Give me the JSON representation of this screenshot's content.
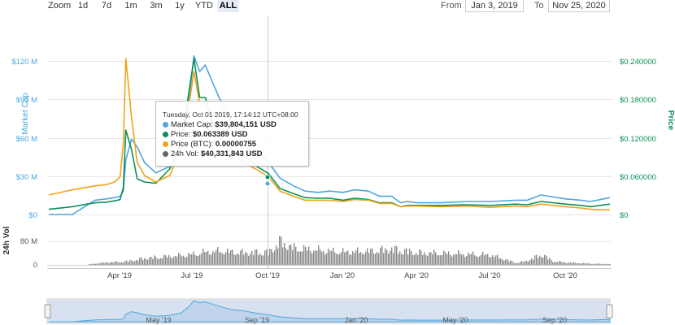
{
  "toolbar": {
    "zoom_label": "Zoom",
    "zoom_buttons": [
      "1d",
      "7d",
      "1m",
      "3m",
      "1y",
      "YTD",
      "ALL"
    ],
    "active_zoom": "ALL",
    "from_label": "From",
    "from_value": "Jan 3, 2019",
    "to_label": "To",
    "to_value": "Nov 25, 2020"
  },
  "tooltip": {
    "title": "Tuesday, Oct 01 2019, 17:14:12 UTC+08:00",
    "rows": [
      {
        "label": "Market Cap:",
        "value": "$39,804,151 USD",
        "color": "#4ea6dc"
      },
      {
        "label": "Price:",
        "value": "$0.063389 USD",
        "color": "#0c8f56"
      },
      {
        "label": "Price (BTC):",
        "value": "0.00000755",
        "color": "#f0a31a"
      },
      {
        "label": "24h Vol:",
        "value": "$40,331,843 USD",
        "color": "#666666"
      }
    ]
  },
  "chart_data": {
    "type": "line",
    "xlabel": "",
    "x_tick_labels": [
      "Apr '19",
      "Jul '19",
      "Oct '19",
      "Jan '20",
      "Apr '20",
      "Jul '20",
      "Oct '20"
    ],
    "left_axis": {
      "label": "Market Cap",
      "ticks": [
        "$0",
        "$30 M",
        "$60 M",
        "$90 M",
        "$120 M"
      ],
      "range": [
        0,
        140
      ]
    },
    "right_axis": {
      "label": "Price",
      "ticks": [
        "$0",
        "$0.060000",
        "$0.120000",
        "$0.180000",
        "$0.240000"
      ],
      "range": [
        0,
        0.28
      ]
    },
    "volume_axis": {
      "label": "24h Vol",
      "ticks": [
        "0",
        "80 M"
      ]
    },
    "navigator_labels": [
      "May '19",
      "Sep '19",
      "Jan '20",
      "May '20",
      "Sep '20"
    ],
    "x": [
      "2019-01-03",
      "2019-02-01",
      "2019-03-01",
      "2019-03-15",
      "2019-03-25",
      "2019-04-01",
      "2019-04-05",
      "2019-04-08",
      "2019-04-15",
      "2019-04-22",
      "2019-05-01",
      "2019-05-15",
      "2019-06-01",
      "2019-06-15",
      "2019-06-25",
      "2019-07-01",
      "2019-07-08",
      "2019-07-15",
      "2019-07-25",
      "2019-08-01",
      "2019-08-15",
      "2019-09-01",
      "2019-09-15",
      "2019-10-01",
      "2019-10-15",
      "2019-11-01",
      "2019-11-15",
      "2019-12-01",
      "2019-12-15",
      "2020-01-01",
      "2020-01-15",
      "2020-02-01",
      "2020-02-15",
      "2020-03-01",
      "2020-03-12",
      "2020-03-20",
      "2020-04-01",
      "2020-05-01",
      "2020-06-01",
      "2020-07-01",
      "2020-08-01",
      "2020-08-15",
      "2020-09-01",
      "2020-10-01",
      "2020-10-20",
      "2020-11-01",
      "2020-11-25"
    ],
    "series": [
      {
        "name": "Market Cap",
        "axis": "left",
        "color": "#4ea6dc",
        "values": [
          0,
          0,
          11,
          12,
          13,
          14,
          18,
          42,
          58,
          52,
          40,
          32,
          37,
          50,
          88,
          122,
          110,
          115,
          100,
          90,
          72,
          62,
          50,
          40,
          28,
          22,
          18,
          17,
          18,
          17,
          19,
          18,
          14,
          14,
          9,
          10,
          9,
          9,
          10,
          10,
          11,
          11,
          15,
          12,
          11,
          10,
          13
        ]
      },
      {
        "name": "Price",
        "axis": "right",
        "color": "#0c8f56",
        "values": [
          0.008,
          0.012,
          0.018,
          0.019,
          0.021,
          0.023,
          0.042,
          0.13,
          0.1,
          0.055,
          0.05,
          0.048,
          0.07,
          0.11,
          0.19,
          0.24,
          0.18,
          0.18,
          0.14,
          0.12,
          0.1,
          0.09,
          0.075,
          0.063,
          0.04,
          0.032,
          0.026,
          0.025,
          0.025,
          0.022,
          0.025,
          0.023,
          0.018,
          0.018,
          0.012,
          0.014,
          0.014,
          0.014,
          0.015,
          0.014,
          0.016,
          0.015,
          0.02,
          0.016,
          0.014,
          0.012,
          0.016
        ]
      },
      {
        "name": "Price (BTC)",
        "axis": "right",
        "color": "#f0a31a",
        "values": [
          0.03,
          0.038,
          0.044,
          0.046,
          0.05,
          0.058,
          0.11,
          0.24,
          0.15,
          0.08,
          0.06,
          0.05,
          0.06,
          0.1,
          0.17,
          0.22,
          0.17,
          0.17,
          0.13,
          0.11,
          0.09,
          0.08,
          0.07,
          0.058,
          0.036,
          0.028,
          0.022,
          0.022,
          0.022,
          0.02,
          0.023,
          0.022,
          0.017,
          0.017,
          0.012,
          0.013,
          0.013,
          0.012,
          0.013,
          0.011,
          0.013,
          0.012,
          0.016,
          0.012,
          0.01,
          0.008,
          0.007
        ]
      }
    ],
    "volume": {
      "name": "24h Vol",
      "color": "#8a8a8a",
      "x": [
        "2019-02-20",
        "2019-03-15",
        "2019-04-01",
        "2019-04-10",
        "2019-05-01",
        "2019-06-01",
        "2019-07-01",
        "2019-07-15",
        "2019-08-01",
        "2019-09-01",
        "2019-10-01",
        "2019-10-15",
        "2019-10-20",
        "2019-11-01",
        "2019-12-01",
        "2020-01-01",
        "2020-02-01",
        "2020-03-01",
        "2020-04-01",
        "2020-05-01",
        "2020-06-01",
        "2020-07-01",
        "2020-08-01",
        "2020-08-15",
        "2020-09-01",
        "2020-09-15",
        "2020-10-01",
        "2020-11-01",
        "2020-11-25"
      ],
      "values": [
        2,
        8,
        10,
        12,
        22,
        28,
        35,
        42,
        45,
        40,
        42,
        78,
        68,
        55,
        48,
        42,
        45,
        52,
        40,
        38,
        35,
        32,
        6,
        14,
        35,
        12,
        8,
        4,
        3
      ]
    }
  }
}
